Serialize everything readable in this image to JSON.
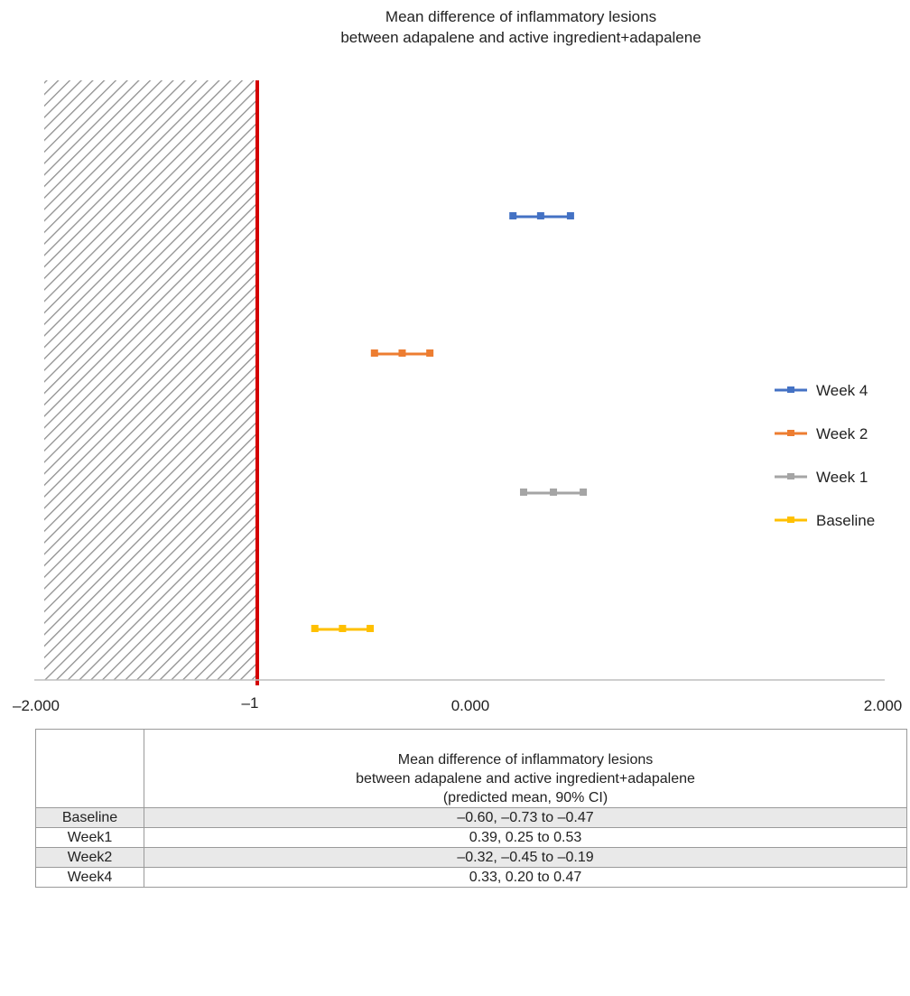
{
  "chart_data": {
    "type": "scatter",
    "title": [
      "Mean difference of inflammatory lesions",
      "between adapalene and active ingredient+adapalene"
    ],
    "xlim": [
      -2,
      2
    ],
    "x_ticks": [
      {
        "value": -2,
        "label": "–2.000"
      },
      {
        "value": 0,
        "label": "0.000"
      },
      {
        "value": 2,
        "label": "2.000"
      }
    ],
    "reference_line": {
      "value": -1,
      "label": "–1",
      "color": "#d40000"
    },
    "hatched_region": [
      -2,
      -1
    ],
    "series": [
      {
        "name": "Week 4",
        "color": "#4472c4",
        "point": 0.33,
        "low": 0.2,
        "high": 0.47
      },
      {
        "name": "Week 2",
        "color": "#ed7d31",
        "point": -0.32,
        "low": -0.45,
        "high": -0.19
      },
      {
        "name": "Week 1",
        "color": "#a5a5a5",
        "point": 0.39,
        "low": 0.25,
        "high": 0.53
      },
      {
        "name": "Baseline",
        "color": "#ffc000",
        "point": -0.6,
        "low": -0.73,
        "high": -0.47
      }
    ],
    "legend_position": "right",
    "grid": false
  },
  "table": {
    "header_lines": [
      "Mean difference of inflammatory lesions",
      "between adapalene and active ingredient+adapalene",
      "(predicted mean, 90% CI)"
    ],
    "rows": [
      {
        "label": "Baseline",
        "value": "–0.60, –0.73 to –0.47"
      },
      {
        "label": "Week1",
        "value": "0.39, 0.25 to 0.53"
      },
      {
        "label": "Week2",
        "value": "–0.32, –0.45 to –0.19"
      },
      {
        "label": "Week4",
        "value": "0.33, 0.20 to 0.47"
      }
    ]
  }
}
